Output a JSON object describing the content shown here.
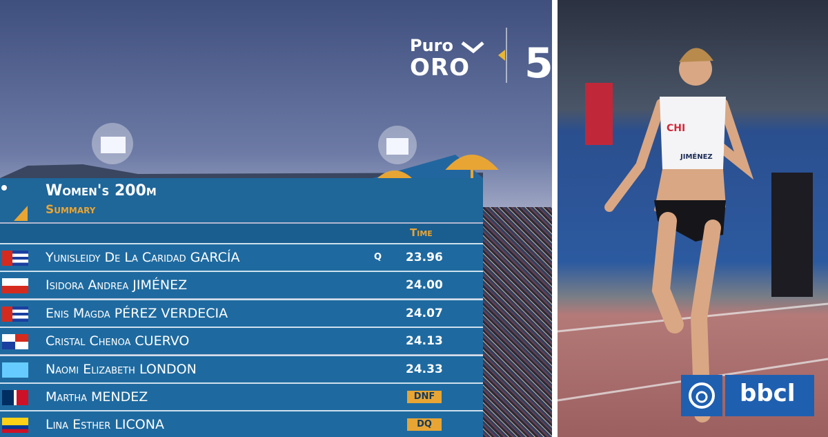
{
  "broadcast_logo": {
    "line1": "Puro",
    "line2": "ORO"
  },
  "header": {
    "title": "Women's 200m",
    "subtitle": "Summary"
  },
  "table": {
    "column_header": "Time",
    "rows": [
      {
        "name": "Yunisleidy De La Caridad GARCÍA",
        "qualifier": "Q",
        "result": "23.96"
      },
      {
        "name": "Isidora Andrea JIMÉNEZ",
        "result": "24.00"
      },
      {
        "name": "Enis Magda PÉREZ VERDECIA",
        "result": "24.07"
      },
      {
        "name": "Cristal Chenoa CUERVO",
        "result": "24.13"
      },
      {
        "name": "Naomi Elizabeth LONDON",
        "result": "24.33"
      },
      {
        "name": "Martha MENDEZ",
        "status": "DNF"
      },
      {
        "name": "Lina Esther LICONA",
        "status": "DQ"
      }
    ]
  },
  "photo": {
    "bib_country": "CHI",
    "bib_name": "JIMÉNEZ"
  },
  "watermark": "bbcl"
}
